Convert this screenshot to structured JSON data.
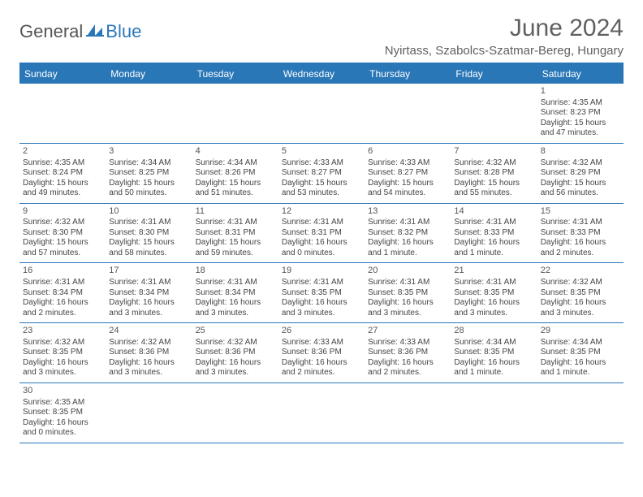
{
  "logo": {
    "text1": "General",
    "text2": "Blue"
  },
  "title": "June 2024",
  "location": "Nyirtass, Szabolcs-Szatmar-Bereg, Hungary",
  "colors": {
    "header_bg": "#2a77b8",
    "text": "#444444",
    "title": "#606060"
  },
  "day_headers": [
    "Sunday",
    "Monday",
    "Tuesday",
    "Wednesday",
    "Thursday",
    "Friday",
    "Saturday"
  ],
  "weeks": [
    [
      null,
      null,
      null,
      null,
      null,
      null,
      {
        "d": "1",
        "sr": "4:35 AM",
        "ss": "8:23 PM",
        "dl": "15 hours and 47 minutes."
      }
    ],
    [
      {
        "d": "2",
        "sr": "4:35 AM",
        "ss": "8:24 PM",
        "dl": "15 hours and 49 minutes."
      },
      {
        "d": "3",
        "sr": "4:34 AM",
        "ss": "8:25 PM",
        "dl": "15 hours and 50 minutes."
      },
      {
        "d": "4",
        "sr": "4:34 AM",
        "ss": "8:26 PM",
        "dl": "15 hours and 51 minutes."
      },
      {
        "d": "5",
        "sr": "4:33 AM",
        "ss": "8:27 PM",
        "dl": "15 hours and 53 minutes."
      },
      {
        "d": "6",
        "sr": "4:33 AM",
        "ss": "8:27 PM",
        "dl": "15 hours and 54 minutes."
      },
      {
        "d": "7",
        "sr": "4:32 AM",
        "ss": "8:28 PM",
        "dl": "15 hours and 55 minutes."
      },
      {
        "d": "8",
        "sr": "4:32 AM",
        "ss": "8:29 PM",
        "dl": "15 hours and 56 minutes."
      }
    ],
    [
      {
        "d": "9",
        "sr": "4:32 AM",
        "ss": "8:30 PM",
        "dl": "15 hours and 57 minutes."
      },
      {
        "d": "10",
        "sr": "4:31 AM",
        "ss": "8:30 PM",
        "dl": "15 hours and 58 minutes."
      },
      {
        "d": "11",
        "sr": "4:31 AM",
        "ss": "8:31 PM",
        "dl": "15 hours and 59 minutes."
      },
      {
        "d": "12",
        "sr": "4:31 AM",
        "ss": "8:31 PM",
        "dl": "16 hours and 0 minutes."
      },
      {
        "d": "13",
        "sr": "4:31 AM",
        "ss": "8:32 PM",
        "dl": "16 hours and 1 minute."
      },
      {
        "d": "14",
        "sr": "4:31 AM",
        "ss": "8:33 PM",
        "dl": "16 hours and 1 minute."
      },
      {
        "d": "15",
        "sr": "4:31 AM",
        "ss": "8:33 PM",
        "dl": "16 hours and 2 minutes."
      }
    ],
    [
      {
        "d": "16",
        "sr": "4:31 AM",
        "ss": "8:34 PM",
        "dl": "16 hours and 2 minutes."
      },
      {
        "d": "17",
        "sr": "4:31 AM",
        "ss": "8:34 PM",
        "dl": "16 hours and 3 minutes."
      },
      {
        "d": "18",
        "sr": "4:31 AM",
        "ss": "8:34 PM",
        "dl": "16 hours and 3 minutes."
      },
      {
        "d": "19",
        "sr": "4:31 AM",
        "ss": "8:35 PM",
        "dl": "16 hours and 3 minutes."
      },
      {
        "d": "20",
        "sr": "4:31 AM",
        "ss": "8:35 PM",
        "dl": "16 hours and 3 minutes."
      },
      {
        "d": "21",
        "sr": "4:31 AM",
        "ss": "8:35 PM",
        "dl": "16 hours and 3 minutes."
      },
      {
        "d": "22",
        "sr": "4:32 AM",
        "ss": "8:35 PM",
        "dl": "16 hours and 3 minutes."
      }
    ],
    [
      {
        "d": "23",
        "sr": "4:32 AM",
        "ss": "8:35 PM",
        "dl": "16 hours and 3 minutes."
      },
      {
        "d": "24",
        "sr": "4:32 AM",
        "ss": "8:36 PM",
        "dl": "16 hours and 3 minutes."
      },
      {
        "d": "25",
        "sr": "4:32 AM",
        "ss": "8:36 PM",
        "dl": "16 hours and 3 minutes."
      },
      {
        "d": "26",
        "sr": "4:33 AM",
        "ss": "8:36 PM",
        "dl": "16 hours and 2 minutes."
      },
      {
        "d": "27",
        "sr": "4:33 AM",
        "ss": "8:36 PM",
        "dl": "16 hours and 2 minutes."
      },
      {
        "d": "28",
        "sr": "4:34 AM",
        "ss": "8:35 PM",
        "dl": "16 hours and 1 minute."
      },
      {
        "d": "29",
        "sr": "4:34 AM",
        "ss": "8:35 PM",
        "dl": "16 hours and 1 minute."
      }
    ],
    [
      {
        "d": "30",
        "sr": "4:35 AM",
        "ss": "8:35 PM",
        "dl": "16 hours and 0 minutes."
      },
      null,
      null,
      null,
      null,
      null,
      null
    ]
  ],
  "labels": {
    "sunrise": "Sunrise:",
    "sunset": "Sunset:",
    "daylight": "Daylight:"
  }
}
